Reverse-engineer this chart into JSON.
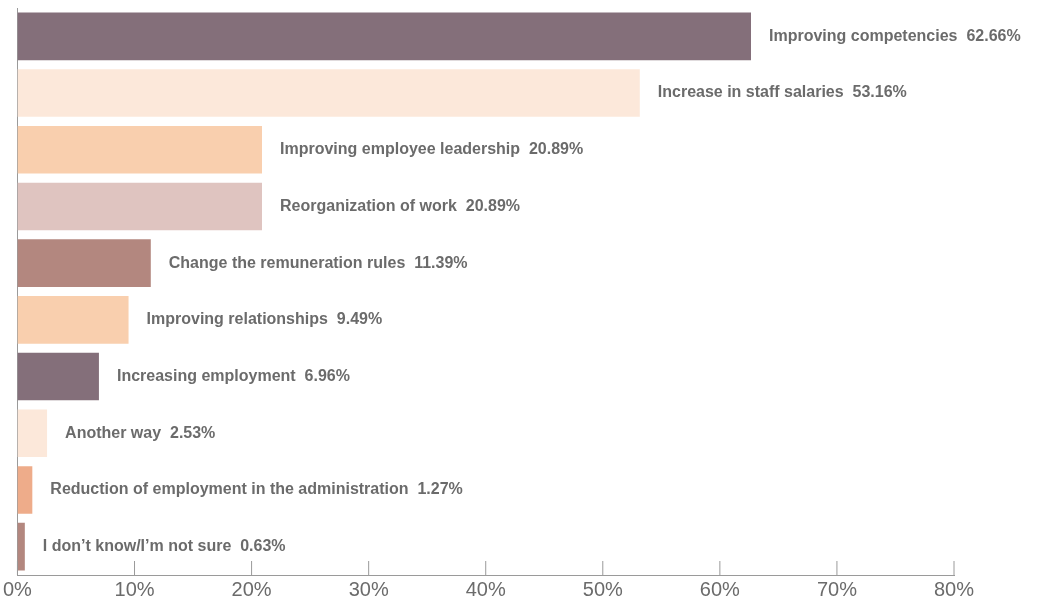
{
  "chart_data": {
    "type": "bar",
    "orientation": "horizontal",
    "categories": [
      "Improving competencies",
      "Increase in staff salaries",
      "Improving employee leadership",
      "Reorganization of work",
      "Change the remuneration rules",
      "Improving relationships",
      "Increasing employment",
      "Another way",
      "Reduction of employment in the administration",
      "I don’t know/I’m not sure"
    ],
    "values": [
      62.66,
      53.16,
      20.89,
      20.89,
      11.39,
      9.49,
      6.96,
      2.53,
      1.27,
      0.63
    ],
    "value_labels": [
      "62.66%",
      "53.16%",
      "20.89%",
      "20.89%",
      "11.39%",
      "9.49%",
      "6.96%",
      "2.53%",
      "1.27%",
      "0.63%"
    ],
    "colors": [
      "#846f7a",
      "#fce8da",
      "#f9cfae",
      "#dfc4c0",
      "#b3877f",
      "#f9cfae",
      "#846f7a",
      "#fce8da",
      "#eeac8a",
      "#b3877f"
    ],
    "xlim": [
      0,
      80
    ],
    "xticks": [
      {
        "value": 0,
        "label": "0%"
      },
      {
        "value": 10,
        "label": "10%"
      },
      {
        "value": 20,
        "label": "20%"
      },
      {
        "value": 30,
        "label": "30%"
      },
      {
        "value": 40,
        "label": "40%"
      },
      {
        "value": 50,
        "label": "50%"
      },
      {
        "value": 60,
        "label": "60%"
      },
      {
        "value": 70,
        "label": "70%"
      },
      {
        "value": 80,
        "label": "80%"
      }
    ],
    "legend": false
  }
}
